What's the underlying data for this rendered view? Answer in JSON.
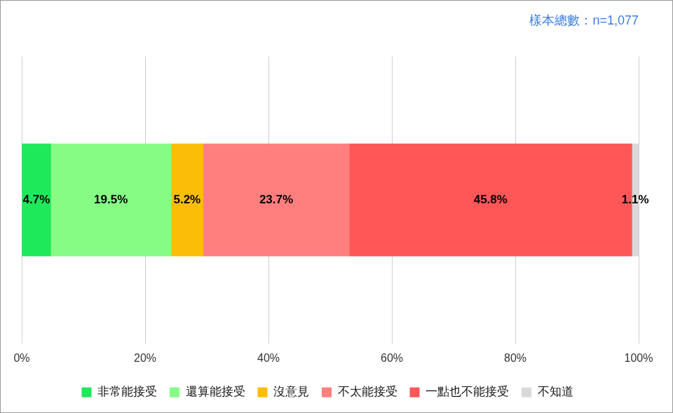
{
  "chart_data": {
    "type": "bar",
    "subtitle": "樣本總數：n=1,077",
    "orientation": "horizontal",
    "stacked": true,
    "data_labels": true,
    "legend": "bottom",
    "grid": true,
    "tick_labels": "x",
    "categories": [
      null
    ],
    "series": [
      {
        "name": "非常能接受",
        "color": "#1de95a",
        "values": [
          4.7
        ],
        "value_labels": [
          "4.7%"
        ]
      },
      {
        "name": "還算能接受",
        "color": "#86fc84",
        "values": [
          19.5
        ],
        "value_labels": [
          "19.5%"
        ]
      },
      {
        "name": "沒意見",
        "color": "#fbbd08",
        "values": [
          5.2
        ],
        "value_labels": [
          "5.2%"
        ]
      },
      {
        "name": "不太能接受",
        "color": "#ff7f7e",
        "values": [
          23.7
        ],
        "value_labels": [
          "23.7%"
        ]
      },
      {
        "name": "一點也不能接受",
        "color": "#ff5757",
        "values": [
          45.8
        ],
        "value_labels": [
          "45.8%"
        ]
      },
      {
        "name": "不知道",
        "color": "#d9d9d9",
        "values": [
          1.1
        ],
        "value_labels": [
          "1.1%"
        ]
      }
    ],
    "xlim": [
      0,
      100
    ],
    "xticks": [
      {
        "value": 0,
        "label": "0%"
      },
      {
        "value": 20,
        "label": "20%"
      },
      {
        "value": 40,
        "label": "40%"
      },
      {
        "value": 60,
        "label": "60%"
      },
      {
        "value": 80,
        "label": "80%"
      },
      {
        "value": 100,
        "label": "100%"
      }
    ]
  }
}
